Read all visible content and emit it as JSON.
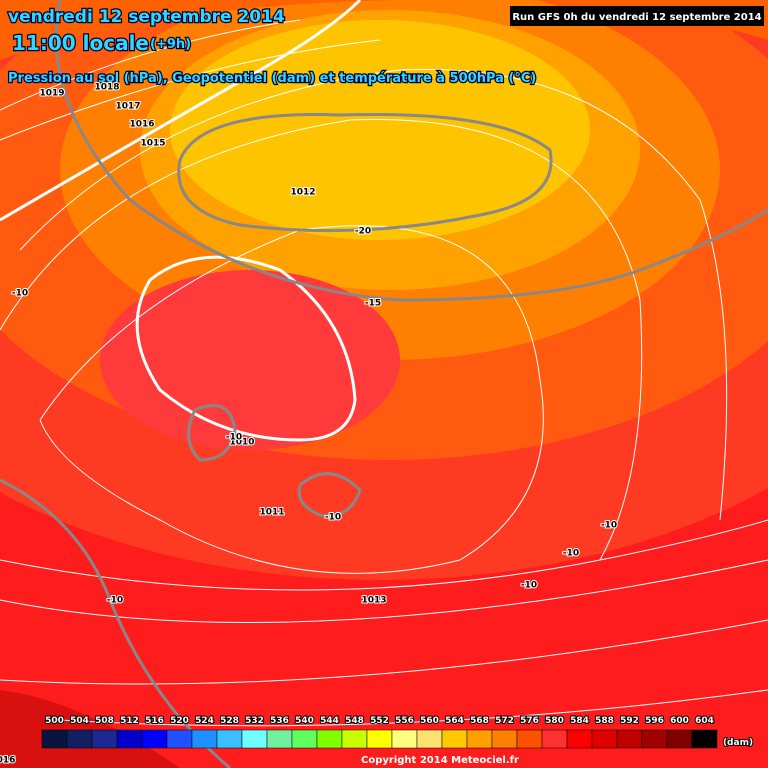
{
  "header": {
    "date": "vendredi 12 septembre 2014",
    "time": "11:00 locale",
    "offset": "(+9h)",
    "description": "Pression au sol (hPa), Geopotentiel (dam) et température à 500hPa (°C)",
    "run": "Run GFS 0h du vendredi 12 septembre 2014"
  },
  "isobar_labels": [
    "1019",
    "1018",
    "1017",
    "1016",
    "1015",
    "1012",
    "1010",
    "1011",
    "1013",
    "016"
  ],
  "temperature_labels": [
    "-10",
    "-20",
    "-15",
    "-10",
    "-10",
    "-10",
    "-10",
    "-10",
    "-10"
  ],
  "legend": {
    "unit": "(dam)",
    "levels": [
      {
        "value": 500,
        "color": "#0a1440"
      },
      {
        "value": 504,
        "color": "#102060"
      },
      {
        "value": 508,
        "color": "#1a2a90"
      },
      {
        "value": 512,
        "color": "#0000c8"
      },
      {
        "value": 516,
        "color": "#0000ff"
      },
      {
        "value": 520,
        "color": "#2050ff"
      },
      {
        "value": 524,
        "color": "#1e90ff"
      },
      {
        "value": 528,
        "color": "#3ac0ff"
      },
      {
        "value": 532,
        "color": "#70ffff"
      },
      {
        "value": 536,
        "color": "#70f0a0"
      },
      {
        "value": 540,
        "color": "#60ff60"
      },
      {
        "value": 544,
        "color": "#80ff00"
      },
      {
        "value": 548,
        "color": "#c8ff00"
      },
      {
        "value": 552,
        "color": "#ffff00"
      },
      {
        "value": 556,
        "color": "#ffff80"
      },
      {
        "value": 560,
        "color": "#ffe070"
      },
      {
        "value": 564,
        "color": "#ffc800"
      },
      {
        "value": 568,
        "color": "#ffa000"
      },
      {
        "value": 572,
        "color": "#ff8000"
      },
      {
        "value": 576,
        "color": "#ff5000"
      },
      {
        "value": 580,
        "color": "#ff3030"
      },
      {
        "value": 584,
        "color": "#ff0000"
      },
      {
        "value": 588,
        "color": "#e00000"
      },
      {
        "value": 592,
        "color": "#c00000"
      },
      {
        "value": 596,
        "color": "#a00000"
      },
      {
        "value": 600,
        "color": "#800000"
      },
      {
        "value": 604,
        "color": "#000000"
      }
    ]
  },
  "footer": {
    "copyright": "Copyright 2014 Meteociel.fr"
  }
}
